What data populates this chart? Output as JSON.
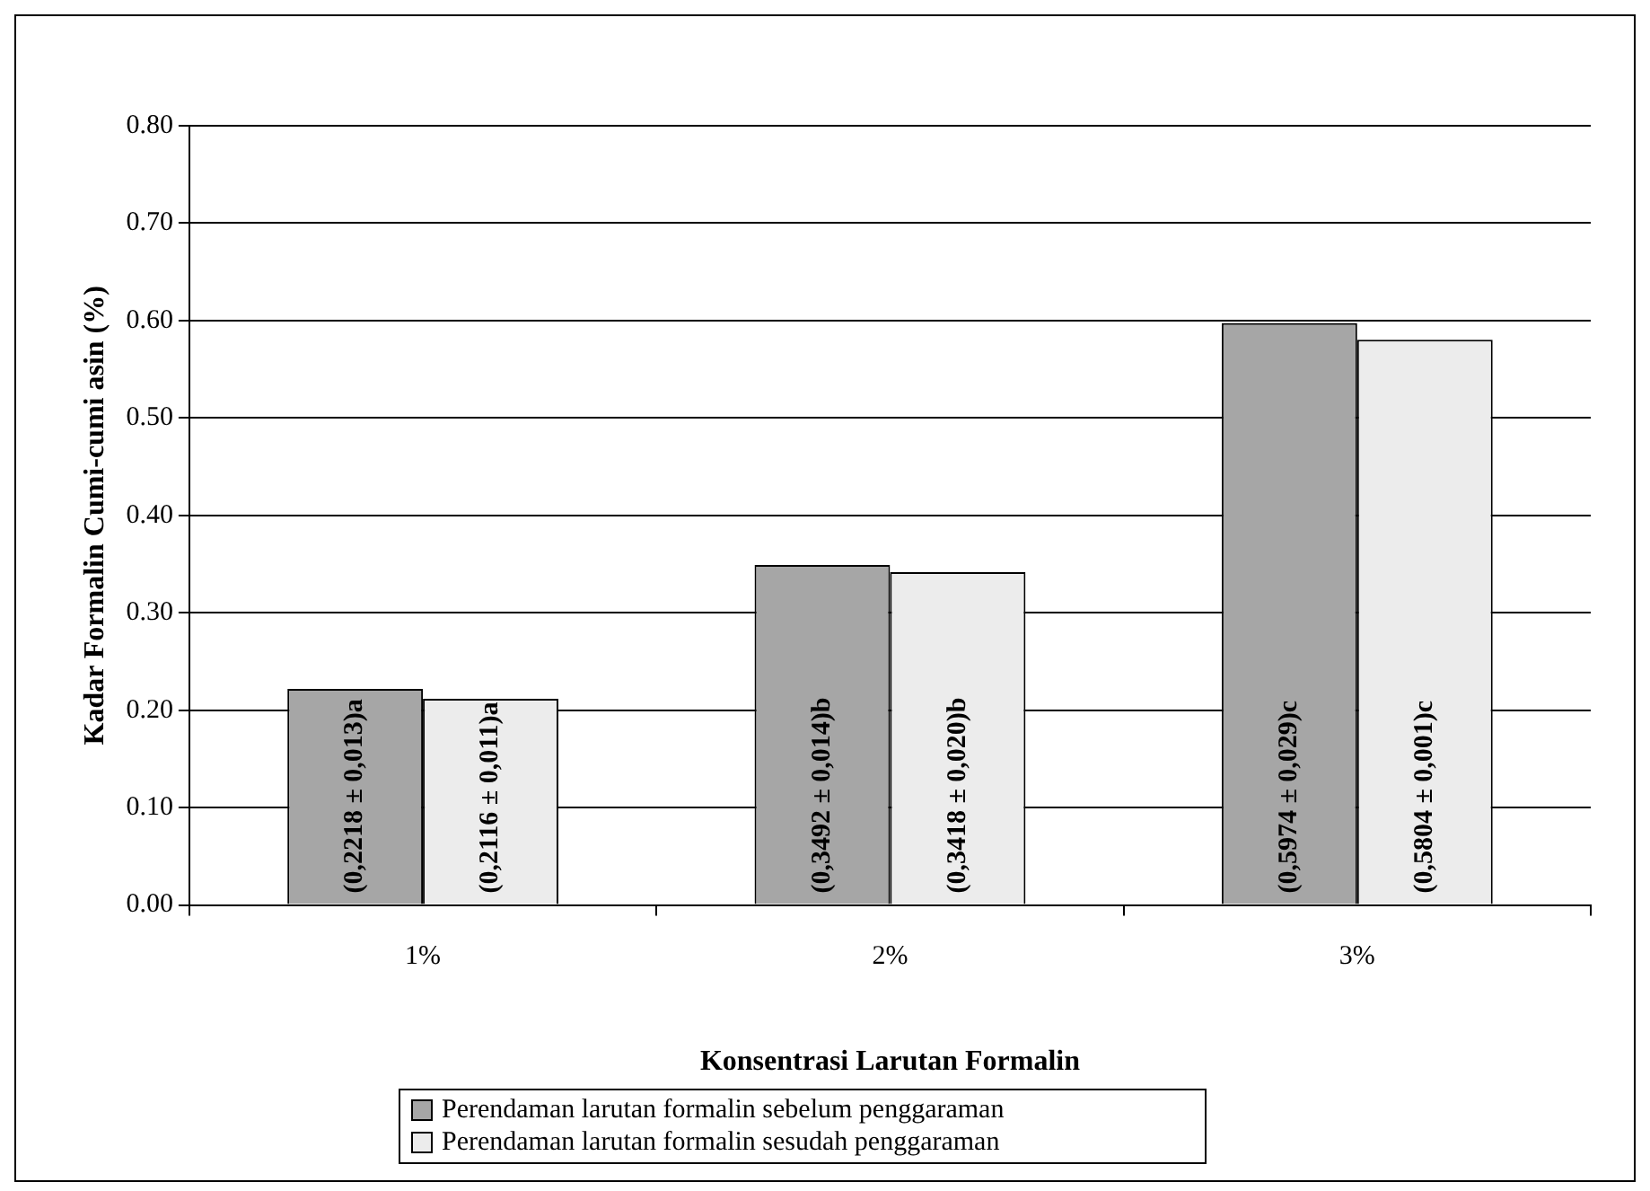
{
  "chart_data": {
    "type": "bar",
    "xlabel": "Konsentrasi Larutan Formalin",
    "ylabel": "Kadar Formalin Cumi-cumi asin (%)",
    "categories": [
      "1%",
      "2%",
      "3%"
    ],
    "series": [
      {
        "name": "Perendaman larutan formalin sebelum penggaraman",
        "color": "#a6a6a6",
        "values": [
          0.2218,
          0.3492,
          0.5974
        ],
        "value_labels": [
          "(0,2218 ± 0,013)a",
          "(0,3492 ± 0,014)b",
          "(0,5974 ± 0,029)c"
        ]
      },
      {
        "name": "Perendaman larutan formalin sesudah penggaraman",
        "color": "#ececec",
        "values": [
          0.2116,
          0.3418,
          0.5804
        ],
        "value_labels": [
          "(0,2116 ± 0,011)a",
          "(0,3418 ± 0,020)b",
          "(0,5804 ± 0,001)c"
        ]
      }
    ],
    "ylim": [
      0,
      0.8
    ],
    "yticks": [
      {
        "value": 0,
        "label": "0.00"
      },
      {
        "value": 0.1,
        "label": "0.10"
      },
      {
        "value": 0.2,
        "label": "0.20"
      },
      {
        "value": 0.3,
        "label": "0.30"
      },
      {
        "value": 0.4,
        "label": "0.40"
      },
      {
        "value": 0.5,
        "label": "0.50"
      },
      {
        "value": 0.6,
        "label": "0.60"
      },
      {
        "value": 0.7,
        "label": "0.70"
      },
      {
        "value": 0.8,
        "label": "0.80"
      }
    ],
    "grid": "y",
    "legend": "bottom"
  }
}
